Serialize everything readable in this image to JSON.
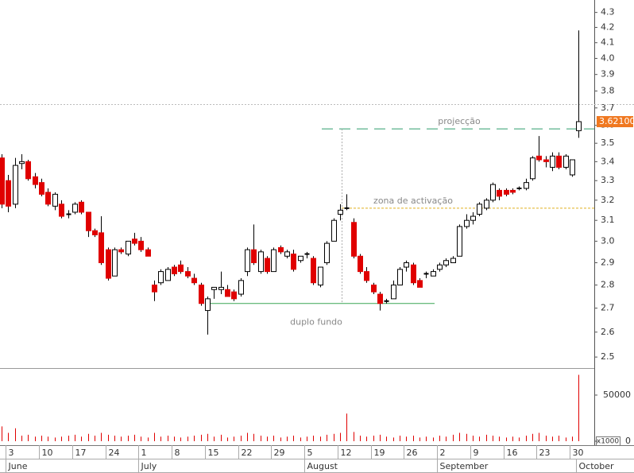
{
  "chart_data": {
    "type": "candlestick",
    "log_scale": true,
    "categories": [
      null,
      "3",
      null,
      null,
      null,
      null,
      "10",
      null,
      null,
      null,
      null,
      "17",
      null,
      null,
      null,
      null,
      "24",
      null,
      null,
      null,
      null,
      "1",
      null,
      null,
      null,
      null,
      "8",
      null,
      null,
      null,
      null,
      "15",
      null,
      null,
      null,
      null,
      "22",
      null,
      null,
      null,
      null,
      "29",
      null,
      null,
      null,
      null,
      "5",
      null,
      null,
      null,
      null,
      "12",
      null,
      null,
      null,
      null,
      "19",
      null,
      null,
      null,
      null,
      "26",
      null,
      null,
      null,
      null,
      "2",
      null,
      null,
      null,
      null,
      "9",
      null,
      null,
      null,
      null,
      "16",
      null,
      null,
      null,
      null,
      "23",
      null,
      null,
      null,
      null,
      "30",
      null
    ],
    "months": [
      {
        "index": 1,
        "label": "June"
      },
      {
        "index": 21,
        "label": "July"
      },
      {
        "index": 46,
        "label": "August"
      },
      {
        "index": 66,
        "label": "September"
      },
      {
        "index": 87,
        "label": "October"
      }
    ],
    "ohlc": [
      [
        3.42,
        3.44,
        3.16,
        3.18
      ],
      [
        3.3,
        3.33,
        3.14,
        3.17
      ],
      [
        3.18,
        3.42,
        3.16,
        3.38
      ],
      [
        3.39,
        3.44,
        3.36,
        3.4
      ],
      [
        3.4,
        3.41,
        3.3,
        3.31
      ],
      [
        3.32,
        3.34,
        3.26,
        3.28
      ],
      [
        3.29,
        3.31,
        3.22,
        3.23
      ],
      [
        3.24,
        3.26,
        3.17,
        3.18
      ],
      [
        3.17,
        3.24,
        3.15,
        3.23
      ],
      [
        3.18,
        3.2,
        3.11,
        3.12
      ],
      [
        3.13,
        3.15,
        3.11,
        3.13
      ],
      [
        3.14,
        3.19,
        3.13,
        3.18
      ],
      [
        3.19,
        3.2,
        3.13,
        3.14
      ],
      [
        3.14,
        3.14,
        3.02,
        3.05
      ],
      [
        3.05,
        3.06,
        3.02,
        3.03
      ],
      [
        3.04,
        3.12,
        2.89,
        2.9
      ],
      [
        2.96,
        2.97,
        2.82,
        2.83
      ],
      [
        2.84,
        2.97,
        2.84,
        2.96
      ],
      [
        2.96,
        2.97,
        2.94,
        2.95
      ],
      [
        2.94,
        3.0,
        2.93,
        3.0
      ],
      [
        3.01,
        3.04,
        2.98,
        2.99
      ],
      [
        3.0,
        3.02,
        2.95,
        2.96
      ],
      [
        2.96,
        2.97,
        2.93,
        2.93
      ],
      [
        2.8,
        2.82,
        2.73,
        2.77
      ],
      [
        2.81,
        2.87,
        2.8,
        2.86
      ],
      [
        2.82,
        2.88,
        2.82,
        2.87
      ],
      [
        2.88,
        2.89,
        2.84,
        2.85
      ],
      [
        2.89,
        2.91,
        2.85,
        2.86
      ],
      [
        2.86,
        2.88,
        2.83,
        2.84
      ],
      [
        2.83,
        2.85,
        2.8,
        2.81
      ],
      [
        2.8,
        2.81,
        2.71,
        2.72
      ],
      [
        2.69,
        2.75,
        2.59,
        2.74
      ],
      [
        2.78,
        2.79,
        2.74,
        2.79
      ],
      [
        2.78,
        2.86,
        2.76,
        2.79
      ],
      [
        2.78,
        2.8,
        2.75,
        2.75
      ],
      [
        2.77,
        2.78,
        2.73,
        2.74
      ],
      [
        2.76,
        2.83,
        2.75,
        2.82
      ],
      [
        2.86,
        2.97,
        2.84,
        2.96
      ],
      [
        2.96,
        3.08,
        2.89,
        2.9
      ],
      [
        2.86,
        2.96,
        2.85,
        2.95
      ],
      [
        2.92,
        2.93,
        2.85,
        2.86
      ],
      [
        2.86,
        2.97,
        2.86,
        2.96
      ],
      [
        2.97,
        2.98,
        2.94,
        2.95
      ],
      [
        2.93,
        2.96,
        2.92,
        2.95
      ],
      [
        2.94,
        2.96,
        2.86,
        2.87
      ],
      [
        2.91,
        2.93,
        2.9,
        2.93
      ],
      [
        2.94,
        2.95,
        2.92,
        2.94
      ],
      [
        2.92,
        2.93,
        2.8,
        2.81
      ],
      [
        2.8,
        2.88,
        2.79,
        2.88
      ],
      [
        2.9,
        3.0,
        2.89,
        2.99
      ],
      [
        3.0,
        3.11,
        3.0,
        3.1
      ],
      [
        3.13,
        3.18,
        3.1,
        3.15
      ],
      [
        3.16,
        3.23,
        3.15,
        3.16
      ],
      [
        3.09,
        3.11,
        2.92,
        2.93
      ],
      [
        2.93,
        2.94,
        2.85,
        2.86
      ],
      [
        2.86,
        2.88,
        2.81,
        2.82
      ],
      [
        2.8,
        2.81,
        2.76,
        2.77
      ],
      [
        2.76,
        2.77,
        2.69,
        2.72
      ],
      [
        2.73,
        2.74,
        2.72,
        2.73
      ],
      [
        2.74,
        2.82,
        2.74,
        2.8
      ],
      [
        2.8,
        2.88,
        2.8,
        2.87
      ],
      [
        2.88,
        2.91,
        2.86,
        2.9
      ],
      [
        2.89,
        2.9,
        2.8,
        2.81
      ],
      [
        2.82,
        2.83,
        2.79,
        2.79
      ],
      [
        2.85,
        2.86,
        2.83,
        2.85
      ],
      [
        2.84,
        2.87,
        2.84,
        2.86
      ],
      [
        2.87,
        2.9,
        2.86,
        2.89
      ],
      [
        2.89,
        2.92,
        2.88,
        2.91
      ],
      [
        2.9,
        2.93,
        2.9,
        2.92
      ],
      [
        2.93,
        3.08,
        2.93,
        3.07
      ],
      [
        3.07,
        3.13,
        3.06,
        3.1
      ],
      [
        3.1,
        3.14,
        3.08,
        3.12
      ],
      [
        3.13,
        3.19,
        3.12,
        3.18
      ],
      [
        3.16,
        3.21,
        3.15,
        3.2
      ],
      [
        3.2,
        3.29,
        3.19,
        3.28
      ],
      [
        3.25,
        3.26,
        3.2,
        3.22
      ],
      [
        3.25,
        3.26,
        3.22,
        3.23
      ],
      [
        3.25,
        3.26,
        3.23,
        3.24
      ],
      [
        3.26,
        3.27,
        3.25,
        3.26
      ],
      [
        3.26,
        3.31,
        3.25,
        3.29
      ],
      [
        3.31,
        3.43,
        3.3,
        3.42
      ],
      [
        3.43,
        3.54,
        3.4,
        3.41
      ],
      [
        3.41,
        3.43,
        3.37,
        3.4
      ],
      [
        3.37,
        3.45,
        3.35,
        3.43
      ],
      [
        3.43,
        3.45,
        3.36,
        3.37
      ],
      [
        3.37,
        3.44,
        3.36,
        3.43
      ],
      [
        3.33,
        3.41,
        3.32,
        3.41
      ],
      [
        3.57,
        4.18,
        3.53,
        3.621
      ]
    ],
    "up_color": "#ffffff",
    "down_color": "#e00000",
    "ylim": [
      2.457,
      4.385
    ],
    "yticks": [
      2.5,
      2.6,
      2.7,
      2.8,
      2.9,
      {
        "value": 3,
        "label": "3.0"
      },
      3.1,
      3.2,
      3.3,
      3.4,
      3.5,
      3.6,
      3.7,
      3.8,
      3.9,
      {
        "value": 4,
        "label": "4.0"
      },
      4.1,
      4.2,
      4.3
    ],
    "last_price": {
      "value": 3.621,
      "label": "3.62100"
    },
    "reference_line": 3.72,
    "annotations": [
      {
        "text": "projecção",
        "value": 3.58,
        "color": "#2e9e6e"
      },
      {
        "text": "zona de activação",
        "value": 3.16,
        "color": "#e0b020"
      },
      {
        "text": "duplo fundo",
        "value": 2.72,
        "color": "#3aa655"
      }
    ],
    "volume": {
      "values": [
        16000,
        9000,
        14000,
        6000,
        7000,
        5000,
        6000,
        5000,
        4000,
        5000,
        6000,
        7000,
        5000,
        8000,
        6000,
        9000,
        7000,
        6000,
        5000,
        6000,
        7000,
        5000,
        4000,
        9000,
        5000,
        6000,
        5000,
        4000,
        5000,
        6000,
        7000,
        8000,
        5000,
        7000,
        4000,
        5000,
        6000,
        9000,
        8000,
        6000,
        5000,
        6000,
        4000,
        5000,
        6000,
        4000,
        5000,
        6000,
        5000,
        7000,
        8000,
        9000,
        30000,
        10000,
        6000,
        5000,
        6000,
        7000,
        5000,
        4000,
        6000,
        5000,
        6000,
        4000,
        5000,
        4000,
        6000,
        5000,
        7000,
        9000,
        8000,
        6000,
        5000,
        7000,
        6000,
        5000,
        4000,
        5000,
        4000,
        6000,
        8000,
        9000,
        6000,
        5000,
        6000,
        4000,
        5000,
        72000
      ],
      "color": "#e00000",
      "unit_label": "x1000",
      "ylim": [
        0,
        76700
      ],
      "yticks": [
        0,
        50000
      ]
    }
  }
}
